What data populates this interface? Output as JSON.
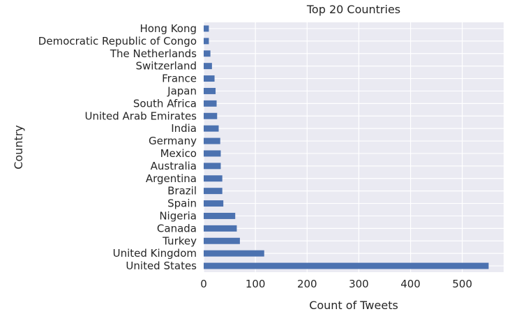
{
  "chart_data": {
    "type": "bar",
    "orientation": "horizontal",
    "title": "Top 20 Countries",
    "xlabel": "Count of Tweets",
    "ylabel": "Country",
    "categories": [
      "United States",
      "United Kingdom",
      "Turkey",
      "Canada",
      "Nigeria",
      "Spain",
      "Brazil",
      "Argentina",
      "Australia",
      "Mexico",
      "Germany",
      "India",
      "United Arab Emirates",
      "South Africa",
      "Japan",
      "France",
      "Switzerland",
      "The Netherlands",
      "Democratic Republic of Congo",
      "Hong Kong"
    ],
    "values": [
      551,
      117,
      70,
      64,
      61,
      38,
      36,
      36,
      33,
      33,
      32,
      29,
      26,
      25,
      23,
      21,
      16,
      13,
      10,
      10
    ],
    "xlim": [
      0,
      580
    ],
    "xticks": [
      0,
      100,
      200,
      300,
      400,
      500
    ],
    "grid": true,
    "colors": {
      "bar": "#4c72b0",
      "background": "#eaeaf2",
      "grid": "#ffffff",
      "text": "#262626"
    }
  }
}
